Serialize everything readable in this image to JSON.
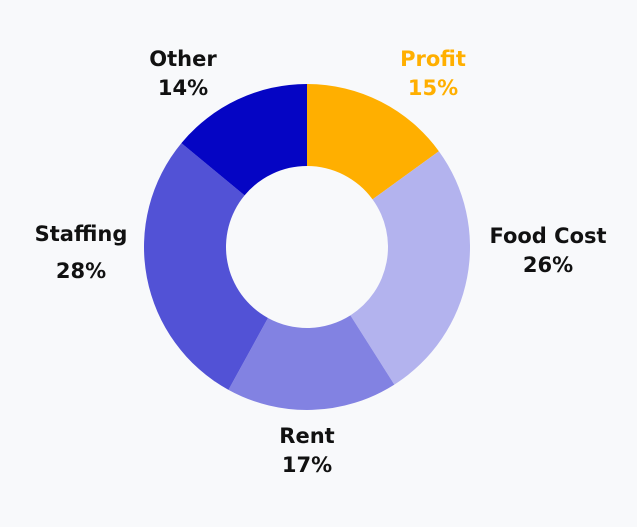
{
  "chart_data": {
    "type": "pie",
    "donut": true,
    "start": "top, clockwise",
    "slices": [
      {
        "label": "Profit",
        "value": 15,
        "display": "15%",
        "color": "#ffaf00",
        "label_color": "#ffaf00"
      },
      {
        "label": "Food Cost",
        "value": 26,
        "display": "26%",
        "color": "#b3b3ee",
        "label_color": "#111111"
      },
      {
        "label": "Rent",
        "value": 17,
        "display": "17%",
        "color": "#8282e2",
        "label_color": "#111111"
      },
      {
        "label": "Staffing",
        "value": 28,
        "display": "28%",
        "color": "#5252d6",
        "label_color": "#111111"
      },
      {
        "label": "Other",
        "value": 14,
        "display": "14%",
        "color": "#0505c4",
        "label_color": "#111111"
      }
    ]
  }
}
